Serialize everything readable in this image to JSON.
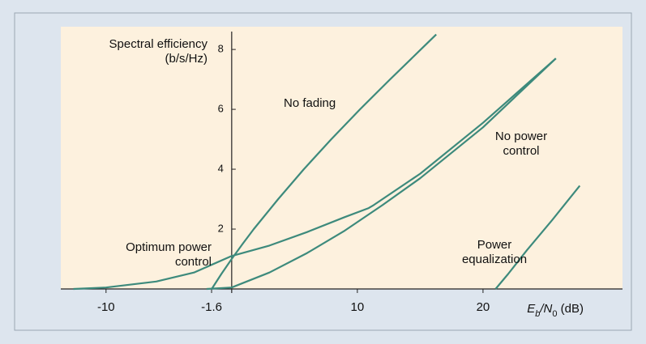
{
  "chart_data": {
    "type": "line",
    "ylabel": "Spectral efficiency (b/s/Hz)",
    "xlabel_parts": [
      "E",
      "b",
      "/N",
      "0",
      " (dB)"
    ],
    "xlim": [
      -13.6,
      31.1
    ],
    "ylim": [
      0,
      8.76
    ],
    "xticks": [
      -10,
      -1.6,
      10,
      20
    ],
    "yticks": [
      2,
      4,
      6,
      8
    ],
    "color": "#3d8a7c",
    "series": [
      {
        "name": "No fading",
        "x": [
          -1.59,
          -0.82,
          0,
          0.86,
          1.76,
          3.7,
          5.74,
          7.92,
          10.21,
          12.6,
          15.05,
          16.28
        ],
        "values": [
          0,
          0.5,
          1,
          1.5,
          2,
          3,
          4,
          5,
          6,
          7,
          8,
          8.5
        ]
      },
      {
        "name": "Optimum power control",
        "x": [
          -12.6,
          -10,
          -6,
          -3,
          0,
          3,
          6,
          9,
          10.9,
          11.3,
          15,
          20,
          25.8
        ],
        "values": [
          0,
          0.05,
          0.25,
          0.55,
          1.1,
          1.45,
          1.9,
          2.4,
          2.7,
          2.8,
          3.85,
          5.55,
          7.7
        ]
      },
      {
        "name": "No power control",
        "x": [
          -2,
          0,
          3,
          6,
          9,
          12,
          15,
          20,
          25.8
        ],
        "values": [
          0,
          0.05,
          0.55,
          1.2,
          1.95,
          2.8,
          3.7,
          5.4,
          7.7
        ]
      },
      {
        "name": "Power equalization",
        "x": [
          21,
          22,
          23.5,
          25.5,
          27.7
        ],
        "values": [
          0,
          0.5,
          1.3,
          2.3,
          3.45
        ]
      }
    ]
  }
}
